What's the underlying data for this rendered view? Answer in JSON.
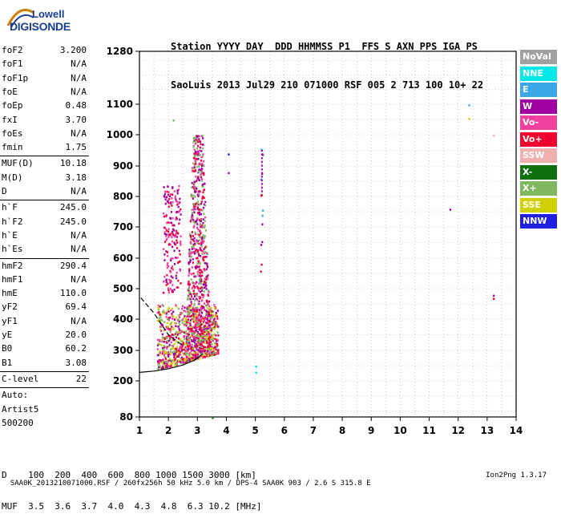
{
  "logo": {
    "line1": "Lowell",
    "line2": "DIGISONDE"
  },
  "header": {
    "line1": "Station YYYY DAY  DDD HHMMSS P1  FFS S AXN PPS IGA PS",
    "line2": "SaoLuis 2013 Jul29 210 071000 RSF 005 2 713 100 10+ 22"
  },
  "params": [
    {
      "name": "foF2",
      "value": "3.200"
    },
    {
      "name": "foF1",
      "value": "N/A"
    },
    {
      "name": "foF1p",
      "value": "N/A"
    },
    {
      "name": "foE",
      "value": "N/A"
    },
    {
      "name": "foEp",
      "value": "0.48"
    },
    {
      "name": "fxI",
      "value": "3.70"
    },
    {
      "name": "foEs",
      "value": "N/A"
    },
    {
      "name": "fmin",
      "value": "1.75"
    },
    {
      "name": "MUF(D)",
      "value": "10.18"
    },
    {
      "name": "M(D)",
      "value": "3.18"
    },
    {
      "name": "D",
      "value": "N/A"
    },
    {
      "name": "h`F",
      "value": "245.0"
    },
    {
      "name": "h`F2",
      "value": "245.0"
    },
    {
      "name": "h`E",
      "value": "N/A"
    },
    {
      "name": "h`Es",
      "value": "N/A"
    },
    {
      "name": "hmF2",
      "value": "290.4"
    },
    {
      "name": "hmF1",
      "value": "N/A"
    },
    {
      "name": "hmE",
      "value": "110.0"
    },
    {
      "name": "yF2",
      "value": "69.4"
    },
    {
      "name": "yF1",
      "value": "N/A"
    },
    {
      "name": "yE",
      "value": "20.0"
    },
    {
      "name": "B0",
      "value": "60.2"
    },
    {
      "name": "B1",
      "value": "3.08"
    },
    {
      "name": "C-level",
      "value": "22"
    },
    {
      "name": "Auto:",
      "value": ""
    },
    {
      "name": "Artist5",
      "value": ""
    },
    {
      "name": "500200",
      "value": ""
    }
  ],
  "freq_table": {
    "line1": "D    100  200  400  600  800 1000 1500 3000 [km]",
    "line2": "MUF  3.5  3.6  3.7  4.0  4.3  4.8  6.3 10.2 [MHz]"
  },
  "footer": {
    "left": "SAA0K_2013210071000.RSF / 260fx256h 50 kHz 5.0 km / DPS-4 SAA0K 903 / 2.6 S 315.8 E",
    "right": "Ion2Png 1.3.17"
  },
  "legend": [
    {
      "label": "NoVal",
      "color": "#a0a0a0"
    },
    {
      "label": "NNE",
      "color": "#00e8e8"
    },
    {
      "label": "E",
      "color": "#3aa8e8"
    },
    {
      "label": "W",
      "color": "#a000a0"
    },
    {
      "label": "Vo-",
      "color": "#f040a0"
    },
    {
      "label": "Vo+",
      "color": "#f00030"
    },
    {
      "label": "SSW",
      "color": "#f0b0b0"
    },
    {
      "label": "X-",
      "color": "#107010"
    },
    {
      "label": "X+",
      "color": "#80b860"
    },
    {
      "label": "SSE",
      "color": "#d0d000"
    },
    {
      "label": "NNW",
      "color": "#2020e0"
    }
  ],
  "chart_data": {
    "type": "scatter",
    "xlabel": "",
    "ylabel": "",
    "x_ticks": [
      1,
      2,
      3,
      4,
      5,
      6,
      7,
      8,
      9,
      10,
      11,
      12,
      13,
      14
    ],
    "y_ticks": [
      80,
      200,
      300,
      400,
      500,
      600,
      700,
      800,
      900,
      1000,
      1100,
      1280
    ],
    "xlim": [
      1,
      14
    ],
    "ylim": [
      80,
      1280
    ],
    "y_scale": "nonlinear (ionogram virtual height, expanded below 300 km)",
    "grid": true,
    "clusters": [
      {
        "label": "F-trace main body",
        "x_range": [
          1.6,
          3.7
        ],
        "y_range": [
          230,
          450
        ],
        "colors": [
          "#f00030",
          "#f040a0",
          "#a000a0",
          "#80b860",
          "#d0d000"
        ]
      },
      {
        "label": "spread F column",
        "x_range": [
          2.6,
          3.5
        ],
        "y_range": [
          300,
          1000
        ],
        "colors": [
          "#f00030",
          "#f040a0",
          "#a000a0",
          "#80b860"
        ]
      },
      {
        "label": "patch near 2.3 MHz",
        "x_range": [
          1.8,
          2.4
        ],
        "y_range": [
          480,
          840
        ],
        "colors": [
          "#f00030",
          "#f040a0",
          "#a000a0"
        ]
      },
      {
        "label": "isolated echoes 5.2 MHz",
        "x_range": [
          5.15,
          5.25
        ],
        "y_range": [
          450,
          960
        ],
        "colors": [
          "#a000a0",
          "#3aa8e8",
          "#f00030"
        ]
      }
    ],
    "isolated_points": [
      {
        "x": 2.15,
        "y": 1050,
        "color": "#80b860"
      },
      {
        "x": 4.05,
        "y": 940,
        "color": "#2020e0"
      },
      {
        "x": 4.05,
        "y": 880,
        "color": "#a000a0"
      },
      {
        "x": 3.5,
        "y": 80,
        "color": "#107010"
      },
      {
        "x": 5.0,
        "y": 250,
        "color": "#00e8e8"
      },
      {
        "x": 5.0,
        "y": 230,
        "color": "#00e8e8"
      },
      {
        "x": 11.7,
        "y": 760,
        "color": "#a000a0"
      },
      {
        "x": 12.35,
        "y": 1100,
        "color": "#3aa8e8"
      },
      {
        "x": 12.35,
        "y": 1055,
        "color": "#d0d000"
      },
      {
        "x": 13.2,
        "y": 1000,
        "color": "#f0b0b0"
      },
      {
        "x": 13.2,
        "y": 480,
        "color": "#a000a0"
      },
      {
        "x": 13.2,
        "y": 470,
        "color": "#f00030"
      }
    ],
    "profile_curve": {
      "label": "hmF2 profile",
      "points": [
        [
          1.0,
          228
        ],
        [
          1.5,
          232
        ],
        [
          2.0,
          240
        ],
        [
          2.5,
          252
        ],
        [
          2.9,
          268
        ],
        [
          3.2,
          290
        ]
      ]
    },
    "dashed_curve": {
      "label": "extrapolated profile",
      "points": [
        [
          1.05,
          470
        ],
        [
          1.5,
          420
        ],
        [
          2.0,
          350
        ],
        [
          2.5,
          315
        ]
      ]
    }
  }
}
